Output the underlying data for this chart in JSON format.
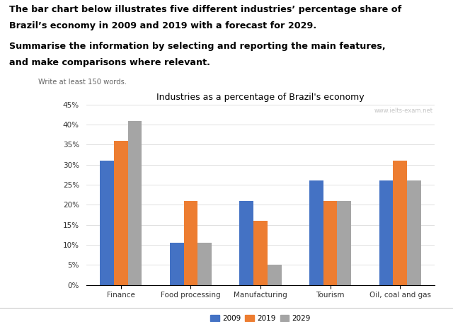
{
  "title": "Industries as a percentage of Brazil's economy",
  "watermark": "www.ielts-exam.net",
  "categories": [
    "Finance",
    "Food processing",
    "Manufacturing",
    "Tourism",
    "Oil, coal and gas"
  ],
  "years": [
    "2009",
    "2019",
    "2029"
  ],
  "values": {
    "2009": [
      31,
      10.5,
      21,
      26,
      26
    ],
    "2019": [
      36,
      21,
      16,
      21,
      31
    ],
    "2029": [
      41,
      10.5,
      5,
      21,
      26
    ]
  },
  "colors": {
    "2009": "#4472C4",
    "2019": "#ED7D31",
    "2029": "#A5A5A5"
  },
  "ylim": [
    0,
    45
  ],
  "yticks": [
    0,
    5,
    10,
    15,
    20,
    25,
    30,
    35,
    40,
    45
  ],
  "ytick_labels": [
    "0%",
    "5%",
    "10%",
    "15%",
    "20%",
    "25%",
    "30%",
    "35%",
    "40%",
    "45%"
  ],
  "header_line1": "The bar chart below illustrates five different industries’ percentage share of",
  "header_line2": "Brazil’s economy in 2009 and 2019 with a forecast for 2029.",
  "subheader_line1": "Summarise the information by selecting and reporting the main features,",
  "subheader_line2": "and make comparisons where relevant.",
  "small_text": "Write at least 150 words.",
  "background_color": "#ffffff"
}
